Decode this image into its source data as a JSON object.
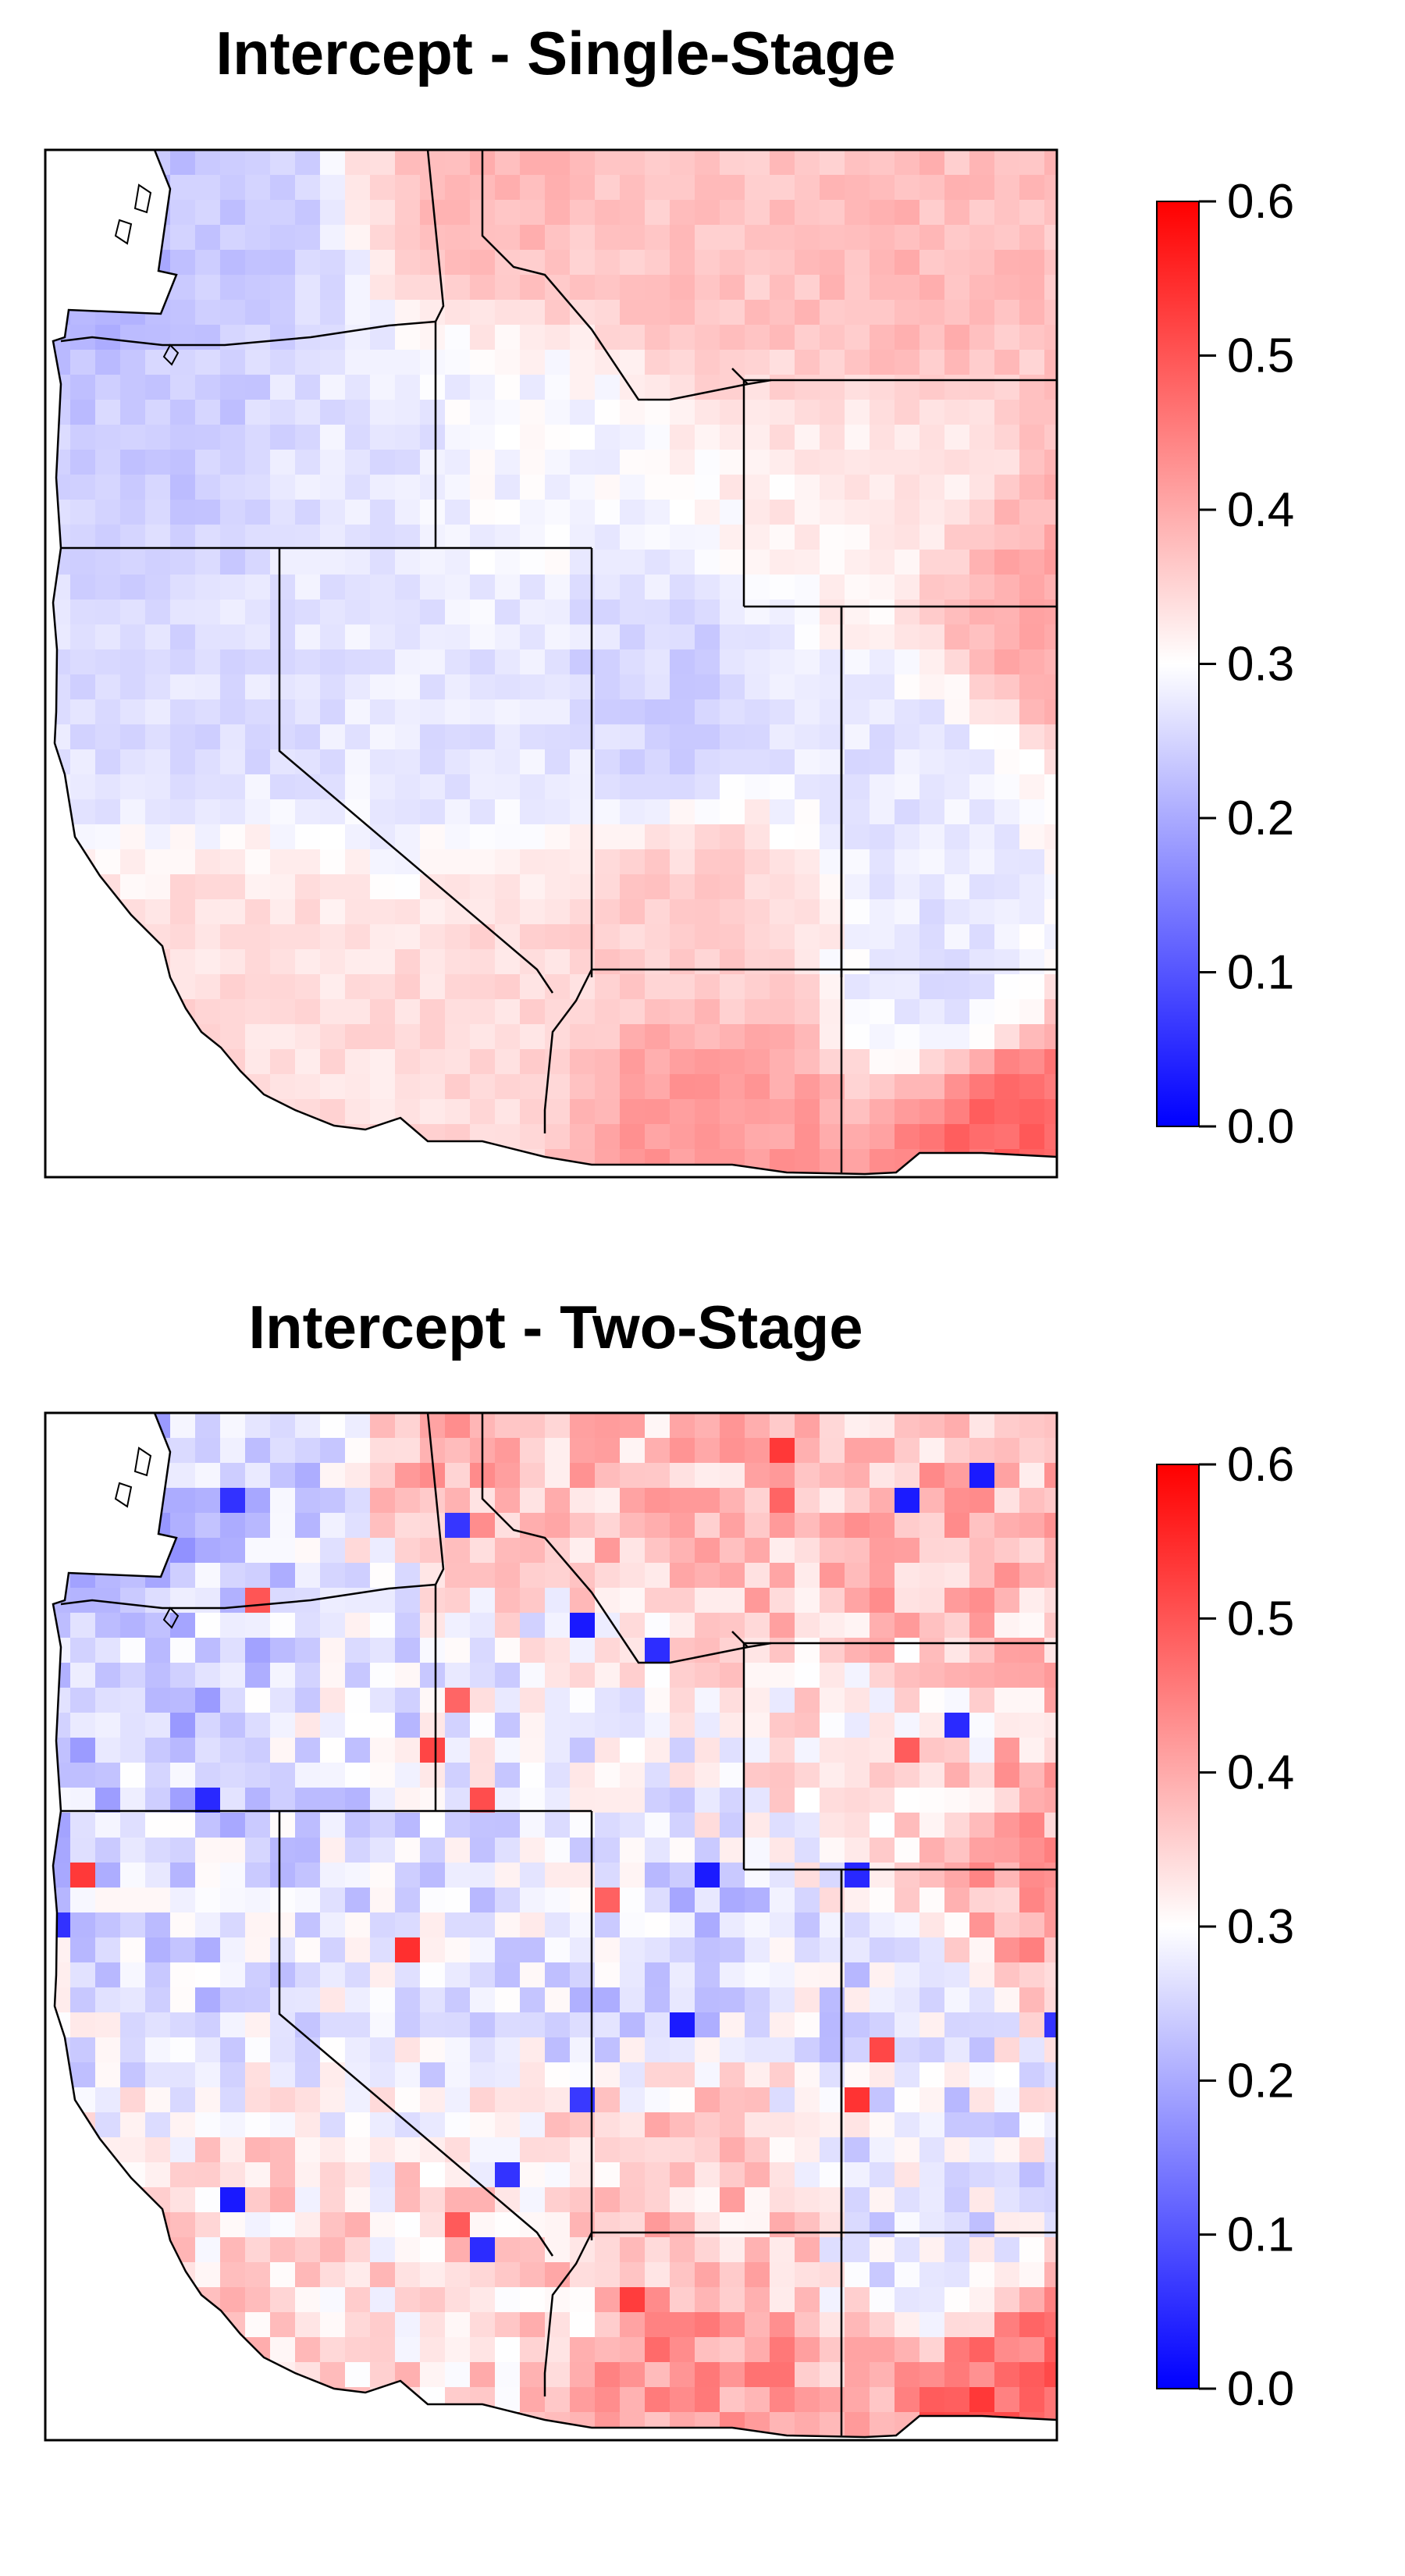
{
  "panels": [
    {
      "title": "Intercept - Single-Stage",
      "variant": "smooth"
    },
    {
      "title": "Intercept - Two-Stage",
      "variant": "noisy"
    }
  ],
  "colorbar": {
    "ticks": [
      "0.0",
      "0.1",
      "0.2",
      "0.3",
      "0.4",
      "0.5",
      "0.6"
    ],
    "min": 0.0,
    "max": 0.6,
    "colors": {
      "low": "#0000ff",
      "mid": "#ffffff",
      "high": "#ff0000"
    }
  },
  "chart_data": [
    {
      "type": "heatmap",
      "title": "Intercept - Single-Stage",
      "value_range": [
        0.0,
        0.6
      ],
      "colormap": "blue-white-red",
      "colorbar_ticks": [
        0.0,
        0.1,
        0.2,
        0.3,
        0.4,
        0.5,
        0.6
      ],
      "regions": [
        {
          "region": "Washington",
          "value": 0.22
        },
        {
          "region": "Oregon",
          "value": 0.24
        },
        {
          "region": "Idaho",
          "value": 0.28
        },
        {
          "region": "Montana",
          "value": 0.36
        },
        {
          "region": "Wyoming",
          "value": 0.33
        },
        {
          "region": "California north",
          "value": 0.26
        },
        {
          "region": "California south",
          "value": 0.36
        },
        {
          "region": "Nevada",
          "value": 0.27
        },
        {
          "region": "Utah",
          "value": 0.25
        },
        {
          "region": "Colorado",
          "value": 0.28
        },
        {
          "region": "Arizona",
          "value": 0.38
        },
        {
          "region": "New Mexico",
          "value": 0.27
        }
      ]
    },
    {
      "type": "heatmap",
      "title": "Intercept - Two-Stage",
      "value_range": [
        0.0,
        0.6
      ],
      "colormap": "blue-white-red",
      "colorbar_ticks": [
        0.0,
        0.1,
        0.2,
        0.3,
        0.4,
        0.5,
        0.6
      ],
      "regions": [
        {
          "region": "Washington",
          "value": 0.21
        },
        {
          "region": "Oregon",
          "value": 0.23
        },
        {
          "region": "Idaho",
          "value": 0.29
        },
        {
          "region": "Montana",
          "value": 0.37
        },
        {
          "region": "Wyoming",
          "value": 0.34
        },
        {
          "region": "California north",
          "value": 0.26
        },
        {
          "region": "California south",
          "value": 0.33
        },
        {
          "region": "Nevada",
          "value": 0.29
        },
        {
          "region": "Utah",
          "value": 0.25
        },
        {
          "region": "Colorado",
          "value": 0.3
        },
        {
          "region": "Arizona",
          "value": 0.34
        },
        {
          "region": "New Mexico",
          "value": 0.26
        }
      ]
    }
  ]
}
